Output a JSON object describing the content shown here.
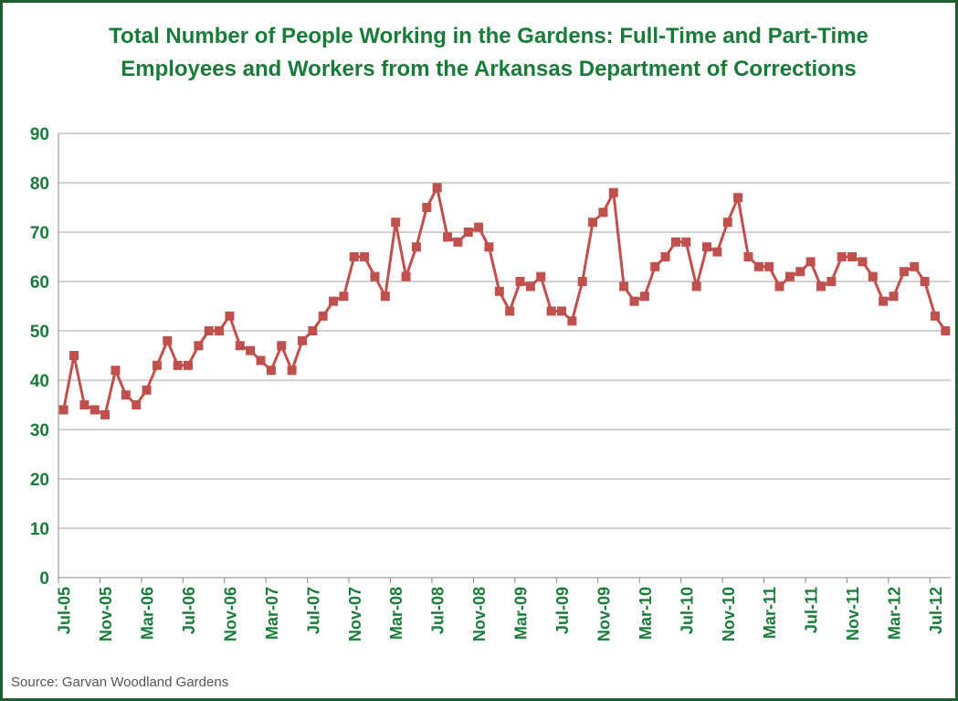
{
  "chart_data": {
    "type": "line",
    "title": "Total Number of People Working in the Gardens: Full-Time and Part-Time Employees and Workers from the Arkansas Department of Corrections",
    "source": "Source: Garvan Woodland Gardens",
    "categories": [
      "Jul-05",
      null,
      null,
      null,
      "Nov-05",
      null,
      null,
      null,
      "Mar-06",
      null,
      null,
      null,
      "Jul-06",
      null,
      null,
      null,
      "Nov-06",
      null,
      null,
      null,
      "Mar-07",
      null,
      null,
      null,
      "Jul-07",
      null,
      null,
      null,
      "Nov-07",
      null,
      null,
      null,
      "Mar-08",
      null,
      null,
      null,
      "Jul-08",
      null,
      null,
      null,
      "Nov-08",
      null,
      null,
      null,
      "Mar-09",
      null,
      null,
      null,
      "Jul-09",
      null,
      null,
      null,
      "Nov-09",
      null,
      null,
      null,
      "Mar-10",
      null,
      null,
      null,
      "Jul-10",
      null,
      null,
      null,
      "Nov-10",
      null,
      null,
      null,
      "Mar-11",
      null,
      null,
      null,
      "Jul-11",
      null,
      null,
      null,
      "Nov-11",
      null,
      null,
      null,
      "Mar-12",
      null,
      null,
      null,
      "Jul-12",
      null
    ],
    "series": [
      {
        "color": "#c0504d",
        "values": [
          34,
          45,
          35,
          34,
          33,
          42,
          37,
          35,
          38,
          43,
          48,
          43,
          43,
          47,
          50,
          50,
          53,
          47,
          46,
          44,
          42,
          47,
          42,
          48,
          50,
          53,
          56,
          57,
          65,
          65,
          61,
          57,
          72,
          61,
          67,
          75,
          79,
          69,
          68,
          70,
          71,
          67,
          58,
          54,
          60,
          59,
          61,
          54,
          54,
          52,
          60,
          72,
          74,
          78,
          59,
          56,
          57,
          63,
          65,
          68,
          68,
          59,
          67,
          66,
          72,
          77,
          65,
          63,
          63,
          59,
          61,
          62,
          64,
          59,
          60,
          65,
          65,
          64,
          61,
          56,
          57,
          62,
          63,
          60,
          53,
          50
        ]
      }
    ],
    "ylim": [
      0,
      90
    ],
    "yticks": [
      0,
      10,
      20,
      30,
      40,
      50,
      60,
      70,
      80,
      90
    ],
    "grid": true
  }
}
